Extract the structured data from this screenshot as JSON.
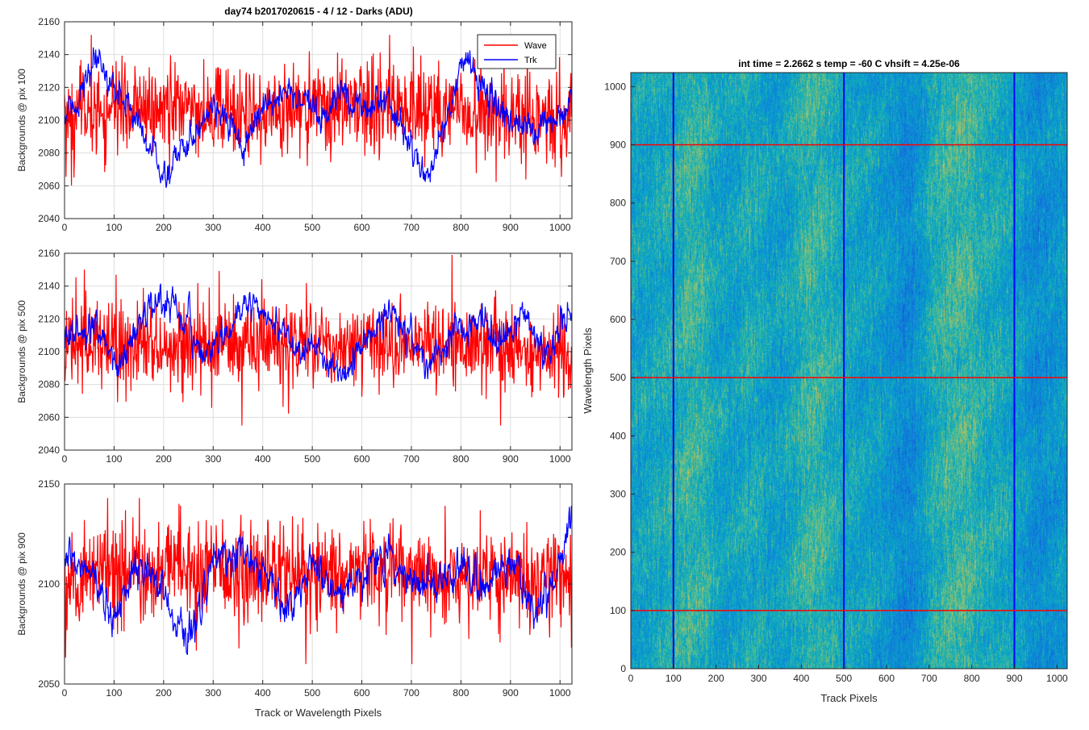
{
  "figure": {
    "title": "day74 b2017020615 - 4 / 12 - Darks (ADU)",
    "shared_xlabel": "Track or Wavelength Pixels"
  },
  "colors": {
    "wave": "#ff0000",
    "trk": "#0000ff",
    "axis": "#262626",
    "grid": "#dedede"
  },
  "chart_data": [
    {
      "type": "line",
      "ylabel": "Backgrounds @ pix 100",
      "xlim": [
        0,
        1024
      ],
      "ylim": [
        2040,
        2160
      ],
      "xticks": [
        0,
        100,
        200,
        300,
        400,
        500,
        600,
        700,
        800,
        900,
        1000
      ],
      "yticks": [
        2040,
        2060,
        2080,
        2100,
        2120,
        2140,
        2160
      ],
      "grid": true,
      "legend": "top-right",
      "series": [
        {
          "name": "Wave",
          "color": "#ff0000",
          "noise_sd": 14,
          "spike_range": [
            2058,
            2152
          ],
          "trend_x": [
            0,
            100,
            200,
            300,
            400,
            500,
            600,
            700,
            800,
            900,
            1024
          ],
          "trend_y": [
            2102,
            2108,
            2106,
            2104,
            2105,
            2106,
            2108,
            2110,
            2106,
            2096,
            2100
          ]
        },
        {
          "name": "Trk",
          "color": "#0000ff",
          "noise_sd": 4,
          "trend_x": [
            0,
            30,
            65,
            100,
            150,
            200,
            260,
            300,
            360,
            400,
            460,
            520,
            560,
            610,
            650,
            700,
            730,
            780,
            810,
            850,
            900,
            950,
            1024
          ],
          "trend_y": [
            2100,
            2115,
            2135,
            2120,
            2100,
            2065,
            2092,
            2112,
            2080,
            2110,
            2118,
            2098,
            2118,
            2108,
            2114,
            2085,
            2062,
            2110,
            2140,
            2118,
            2100,
            2090,
            2112
          ]
        }
      ]
    },
    {
      "type": "line",
      "ylabel": "Backgrounds @ pix 500",
      "xlim": [
        0,
        1024
      ],
      "ylim": [
        2040,
        2160
      ],
      "xticks": [
        0,
        100,
        200,
        300,
        400,
        500,
        600,
        700,
        800,
        900,
        1000
      ],
      "yticks": [
        2040,
        2060,
        2080,
        2100,
        2120,
        2140,
        2160
      ],
      "grid": true,
      "series": [
        {
          "name": "Wave",
          "color": "#ff0000",
          "noise_sd": 13,
          "spike_range": [
            2055,
            2159
          ],
          "trend_x": [
            0,
            200,
            400,
            600,
            800,
            1024
          ],
          "trend_y": [
            2103,
            2102,
            2105,
            2106,
            2103,
            2102
          ]
        },
        {
          "name": "Trk",
          "color": "#0000ff",
          "noise_sd": 4,
          "trend_x": [
            0,
            60,
            110,
            170,
            220,
            280,
            330,
            380,
            440,
            500,
            560,
            600,
            660,
            700,
            740,
            790,
            840,
            880,
            920,
            970,
            1024
          ],
          "trend_y": [
            2110,
            2112,
            2092,
            2128,
            2130,
            2098,
            2112,
            2132,
            2112,
            2100,
            2085,
            2105,
            2125,
            2108,
            2090,
            2112,
            2118,
            2106,
            2125,
            2100,
            2122
          ]
        }
      ]
    },
    {
      "type": "line",
      "ylabel": "Backgrounds @ pix 900",
      "xlabel": "Track or Wavelength Pixels",
      "xlim": [
        0,
        1024
      ],
      "ylim": [
        2050,
        2150
      ],
      "xticks": [
        0,
        100,
        200,
        300,
        400,
        500,
        600,
        700,
        800,
        900,
        1000
      ],
      "yticks": [
        2050,
        2100,
        2150
      ],
      "grid": true,
      "series": [
        {
          "name": "Wave",
          "color": "#ff0000",
          "noise_sd": 12,
          "spike_range": [
            2060,
            2143
          ],
          "trend_x": [
            0,
            200,
            400,
            600,
            800,
            1024
          ],
          "trend_y": [
            2105,
            2106,
            2104,
            2107,
            2104,
            2103
          ]
        },
        {
          "name": "Trk",
          "color": "#0000ff",
          "noise_sd": 4,
          "trend_x": [
            0,
            50,
            100,
            150,
            200,
            250,
            300,
            360,
            400,
            450,
            500,
            550,
            600,
            650,
            700,
            760,
            800,
            850,
            900,
            950,
            990,
            1024
          ],
          "trend_y": [
            2110,
            2108,
            2082,
            2112,
            2095,
            2072,
            2110,
            2118,
            2108,
            2082,
            2112,
            2095,
            2104,
            2115,
            2102,
            2100,
            2110,
            2100,
            2112,
            2085,
            2100,
            2135
          ]
        }
      ]
    },
    {
      "type": "heatmap",
      "title": "int time = 2.2662 s    temp = -60 C    vhsift = 4.25e-06",
      "xlabel": "Track Pixels",
      "ylabel": "Wavelength Pixels",
      "xlim": [
        0,
        1024
      ],
      "ylim": [
        0,
        1024
      ],
      "xticks": [
        0,
        100,
        200,
        300,
        400,
        500,
        600,
        700,
        800,
        900,
        1000
      ],
      "yticks": [
        0,
        100,
        200,
        300,
        400,
        500,
        600,
        700,
        800,
        900,
        1000
      ],
      "colormap": "parula",
      "value_range": [
        0.2,
        0.75
      ],
      "bright_columns": [
        150,
        280,
        420,
        720,
        780
      ],
      "dark_columns": [
        650,
        950
      ],
      "vertical_markers": [
        100,
        500,
        900
      ],
      "horizontal_markers": [
        100,
        500,
        900
      ],
      "marker_colors": {
        "vertical": "#0000ff",
        "horizontal": "#ff0000"
      }
    }
  ]
}
